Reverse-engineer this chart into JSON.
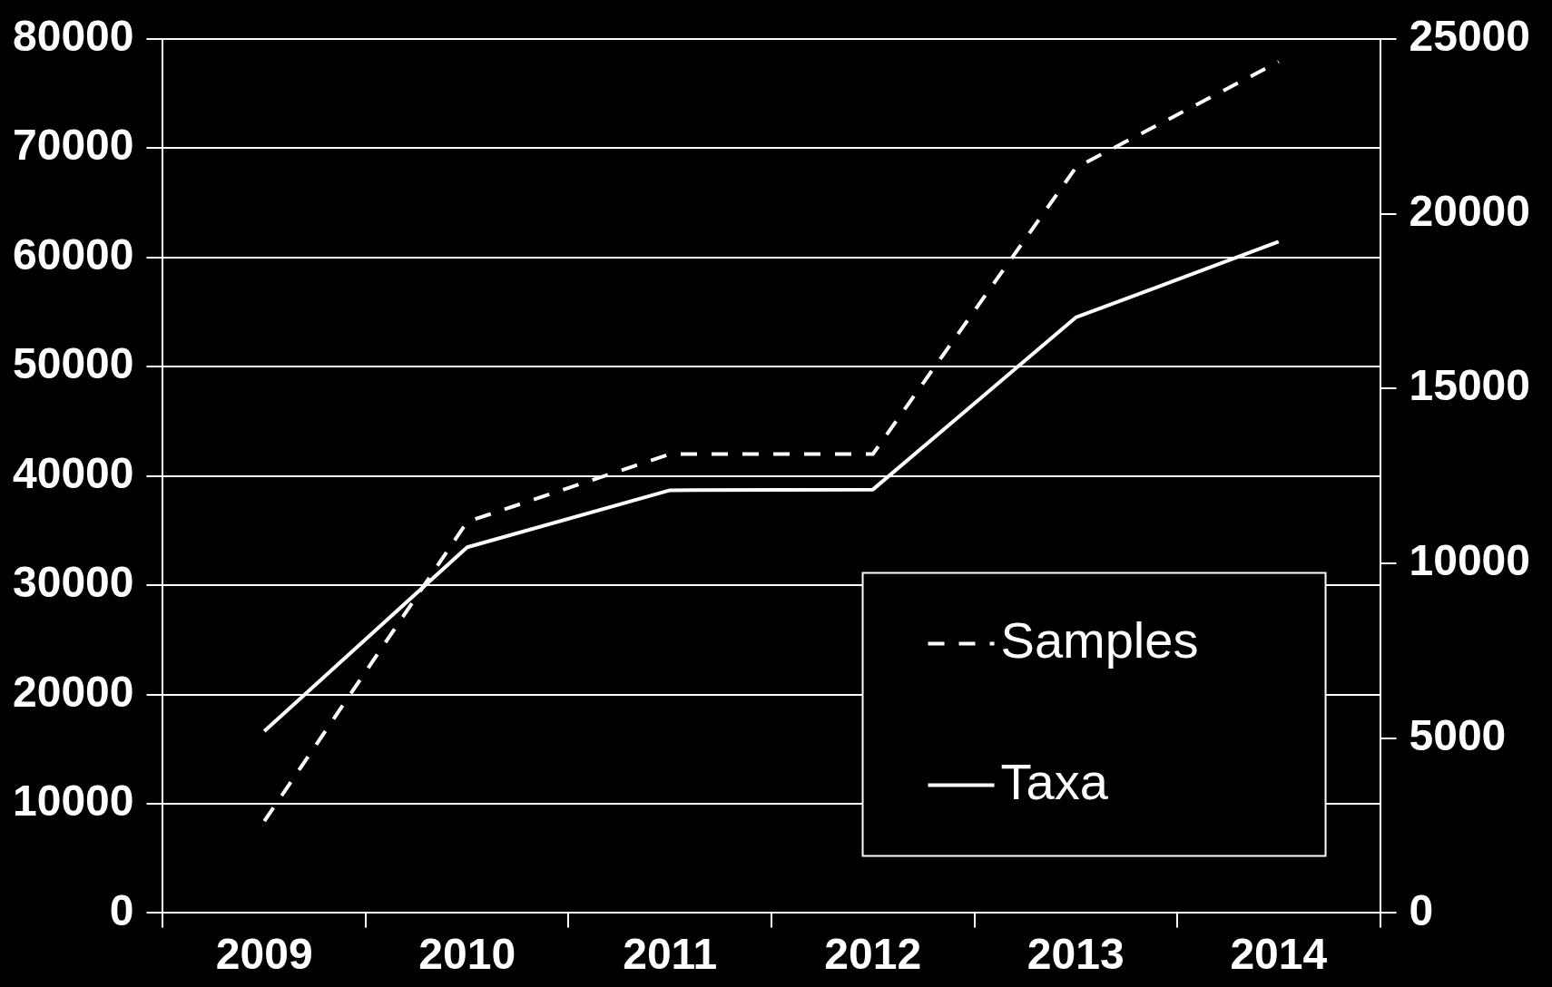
{
  "chart_data": {
    "type": "line",
    "categories": [
      "2009",
      "2010",
      "2011",
      "2012",
      "2013",
      "2014"
    ],
    "series": [
      {
        "name": "Samples",
        "color": "#ffffff",
        "line_style": "dashed",
        "values": [
          8400,
          35800,
          42000,
          42000,
          68200,
          77900
        ]
      },
      {
        "name": "Taxa",
        "color": "#ffffff",
        "line_style": "solid",
        "axis": "y2",
        "values": [
          5200,
          10460,
          12090,
          12110,
          17030,
          19200
        ]
      }
    ],
    "ylim": [
      0,
      80000
    ],
    "yticks": [
      0,
      10000,
      20000,
      30000,
      40000,
      50000,
      60000,
      70000,
      80000
    ],
    "y2lim": [
      0,
      25000
    ],
    "y2ticks": [
      0,
      5000,
      10000,
      15000,
      20000,
      25000
    ],
    "grid": "y",
    "legend": "bottom right",
    "marker": "none"
  }
}
